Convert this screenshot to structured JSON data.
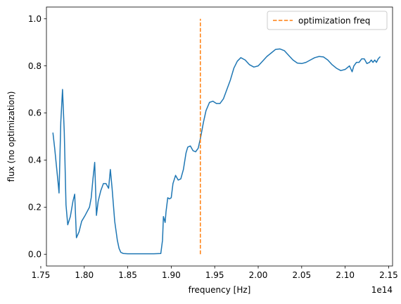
{
  "chart_data": {
    "type": "line",
    "xlabel": "frequency [Hz]",
    "ylabel": "flux (no optimization)",
    "x_offset_label": "1e14",
    "xlim": [
      1.7565,
      2.1545
    ],
    "ylim": [
      -0.05,
      1.05
    ],
    "x_ticks": [
      1.75,
      1.8,
      1.85,
      1.9,
      1.95,
      2.0,
      2.05,
      2.1,
      2.15
    ],
    "x_tick_labels": [
      "1.75",
      "1.80",
      "1.85",
      "1.90",
      "1.95",
      "2.00",
      "2.05",
      "2.10",
      "2.15"
    ],
    "y_ticks": [
      0.0,
      0.2,
      0.4,
      0.6,
      0.8,
      1.0
    ],
    "y_tick_labels": [
      "0.0",
      "0.2",
      "0.4",
      "0.6",
      "0.8",
      "1.0"
    ],
    "grid": false,
    "legend_position": "top-right",
    "series": [
      {
        "color": "#1f77b4",
        "style": "solid",
        "x": [
          1.764,
          1.766,
          1.77,
          1.771,
          1.773,
          1.775,
          1.777,
          1.779,
          1.781,
          1.784,
          1.787,
          1.789,
          1.791,
          1.794,
          1.797,
          1.801,
          1.806,
          1.808,
          1.81,
          1.812,
          1.814,
          1.816,
          1.819,
          1.822,
          1.825,
          1.828,
          1.83,
          1.832,
          1.835,
          1.838,
          1.84,
          1.842,
          1.845,
          1.85,
          1.86,
          1.87,
          1.88,
          1.888,
          1.89,
          1.891,
          1.893,
          1.894,
          1.896,
          1.898,
          1.9,
          1.902,
          1.905,
          1.908,
          1.911,
          1.914,
          1.917,
          1.919,
          1.922,
          1.925,
          1.928,
          1.931,
          1.934,
          1.937,
          1.94,
          1.944,
          1.948,
          1.952,
          1.956,
          1.96,
          1.964,
          1.968,
          1.972,
          1.976,
          1.98,
          1.985,
          1.99,
          1.995,
          2.0,
          2.005,
          2.01,
          2.015,
          2.02,
          2.025,
          2.03,
          2.035,
          2.04,
          2.045,
          2.05,
          2.055,
          2.06,
          2.065,
          2.07,
          2.075,
          2.08,
          2.085,
          2.09,
          2.095,
          2.1,
          2.105,
          2.108,
          2.11,
          2.113,
          2.116,
          2.119,
          2.122,
          2.125,
          2.128,
          2.13,
          2.132,
          2.134,
          2.136,
          2.138,
          2.14
        ],
        "values": [
          0.515,
          0.45,
          0.3,
          0.26,
          0.56,
          0.7,
          0.52,
          0.21,
          0.125,
          0.16,
          0.225,
          0.255,
          0.07,
          0.095,
          0.14,
          0.165,
          0.2,
          0.24,
          0.32,
          0.39,
          0.165,
          0.225,
          0.27,
          0.3,
          0.3,
          0.28,
          0.36,
          0.28,
          0.14,
          0.06,
          0.025,
          0.008,
          0.003,
          0.002,
          0.002,
          0.002,
          0.002,
          0.003,
          0.06,
          0.16,
          0.135,
          0.18,
          0.24,
          0.235,
          0.24,
          0.3,
          0.335,
          0.315,
          0.32,
          0.36,
          0.43,
          0.455,
          0.46,
          0.44,
          0.435,
          0.45,
          0.5,
          0.56,
          0.61,
          0.645,
          0.65,
          0.64,
          0.64,
          0.66,
          0.7,
          0.74,
          0.79,
          0.82,
          0.835,
          0.825,
          0.805,
          0.795,
          0.8,
          0.82,
          0.84,
          0.855,
          0.87,
          0.872,
          0.865,
          0.845,
          0.825,
          0.812,
          0.81,
          0.815,
          0.825,
          0.835,
          0.84,
          0.838,
          0.825,
          0.805,
          0.79,
          0.78,
          0.785,
          0.8,
          0.775,
          0.8,
          0.815,
          0.815,
          0.83,
          0.83,
          0.81,
          0.815,
          0.825,
          0.815,
          0.825,
          0.815,
          0.83,
          0.838
        ]
      },
      {
        "name": "optimization freq",
        "color": "#ff7f0e",
        "style": "dashed",
        "x": [
          1.9335,
          1.9335
        ],
        "values": [
          0.0,
          1.0
        ]
      }
    ]
  }
}
